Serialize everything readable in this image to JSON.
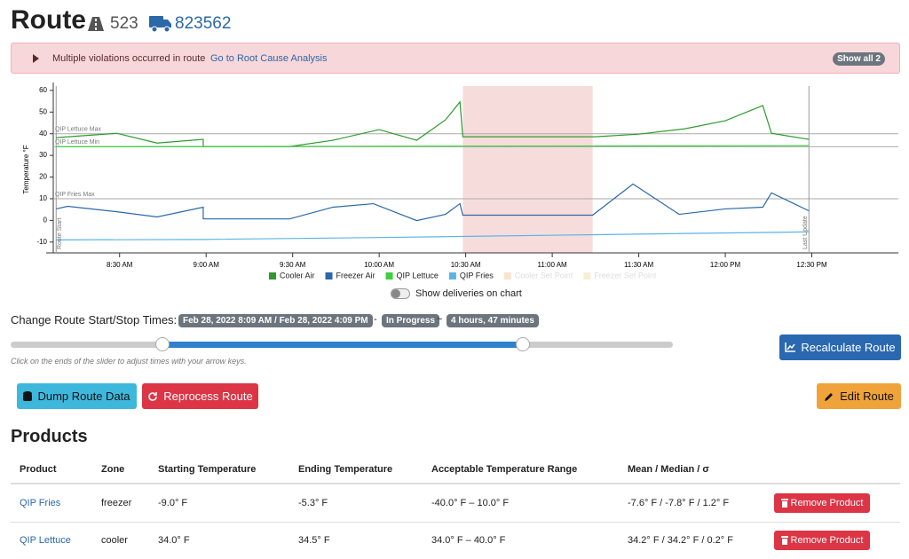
{
  "header": {
    "title": "Route",
    "route_number": "523",
    "truck": "823562"
  },
  "alert": {
    "message": "Multiple violations occurred in route",
    "link": "Go to Root Cause Analysis",
    "button": "Show all 2"
  },
  "chart_data": {
    "type": "line",
    "y_label": "Temperature °F",
    "xlim": [
      487,
      780
    ],
    "xticks": [
      {
        "value": 510,
        "label": "8:30 AM"
      },
      {
        "value": 540,
        "label": "9:00 AM"
      },
      {
        "value": 570,
        "label": "9:30 AM"
      },
      {
        "value": 600,
        "label": "10:00 AM"
      },
      {
        "value": 630,
        "label": "10:30 AM"
      },
      {
        "value": 660,
        "label": "11:00 AM"
      },
      {
        "value": 690,
        "label": "11:30 AM"
      },
      {
        "value": 720,
        "label": "12:00 PM"
      },
      {
        "value": 750,
        "label": "12:30 PM"
      }
    ],
    "ylim": [
      -15,
      62
    ],
    "yticks": [
      -10,
      0,
      10,
      20,
      30,
      40,
      50,
      60
    ],
    "highlight": [
      629,
      674
    ],
    "reference_lines": [
      {
        "label": "QIP Lettuce Max",
        "value": 40
      },
      {
        "label": "QIP Lettuce Min",
        "value": 34
      },
      {
        "label": "QIP Fries Max",
        "value": 10
      }
    ],
    "markers": [
      {
        "label": "Route Start",
        "x": 488
      },
      {
        "label": "Last Update",
        "x": 749
      }
    ],
    "series": [
      {
        "name": "Cooler Air",
        "color": "#2e9a2e",
        "x": [
          488,
          509,
          523,
          539,
          539,
          569,
          584,
          600,
          613,
          623,
          628,
          629,
          653,
          675,
          690,
          706,
          720,
          733,
          736,
          749
        ],
        "values": [
          38.2,
          40.2,
          35.7,
          37.4,
          34.1,
          34.1,
          37.0,
          41.9,
          37.0,
          46.4,
          54.7,
          38.6,
          38.6,
          38.6,
          39.8,
          42.3,
          46.0,
          53.0,
          40.2,
          37.4
        ]
      },
      {
        "name": "Freezer Air",
        "color": "#2a68a8",
        "x": [
          488,
          492,
          509,
          523,
          539,
          539,
          569,
          584,
          598,
          613,
          623,
          628,
          629,
          674,
          688,
          704,
          720,
          733,
          736,
          749
        ],
        "values": [
          5.3,
          6.5,
          4.0,
          1.6,
          6.1,
          0.7,
          0.7,
          6.1,
          7.7,
          -0.1,
          2.8,
          7.7,
          2.4,
          2.4,
          16.8,
          2.8,
          5.3,
          6.1,
          12.7,
          4.4
        ]
      },
      {
        "name": "QIP Lettuce",
        "color": "#3ecf3e",
        "x": [
          488,
          600,
          749
        ],
        "values": [
          34.0,
          34.2,
          34.5
        ]
      },
      {
        "name": "QIP Fries",
        "color": "#5ab4e5",
        "x": [
          488,
          539,
          600,
          675,
          749
        ],
        "values": [
          -9.0,
          -8.8,
          -7.9,
          -6.6,
          -5.3
        ]
      }
    ],
    "hidden_series": [
      {
        "name": "Cooler Set Point",
        "color": "#fbe3cf"
      },
      {
        "name": "Freezer Set Point",
        "color": "#f7efd4"
      }
    ]
  },
  "toggle_label": "Show deliveries on chart",
  "time_controls": {
    "label": "Change Route Start/Stop Times:",
    "range": "Feb 28, 2022 8:09 AM / Feb 28, 2022 4:09 PM",
    "separator1": "-",
    "status": "In Progress",
    "separator2": "~",
    "duration": "4 hours, 47 minutes",
    "hint": "Click on the ends of the slider to adjust times with your arrow keys."
  },
  "buttons": {
    "recalculate": "Recalculate Route",
    "dump": "Dump Route Data",
    "reprocess": "Reprocess Route",
    "edit": "Edit Route"
  },
  "products": {
    "heading": "Products",
    "columns": [
      "Product",
      "Zone",
      "Starting Temperature",
      "Ending Temperature",
      "Acceptable Temperature Range",
      "Mean / Median / σ"
    ],
    "rows": [
      [
        "QIP Fries",
        "freezer",
        "-9.0° F",
        "-5.3° F",
        "-40.0° F – 10.0° F",
        "-7.6° F / -7.8° F / 1.2° F"
      ],
      [
        "QIP Lettuce",
        "cooler",
        "34.0° F",
        "34.5° F",
        "34.0° F – 40.0° F",
        "34.2° F / 34.2° F / 0.2° F"
      ]
    ],
    "action": "Remove Product"
  }
}
